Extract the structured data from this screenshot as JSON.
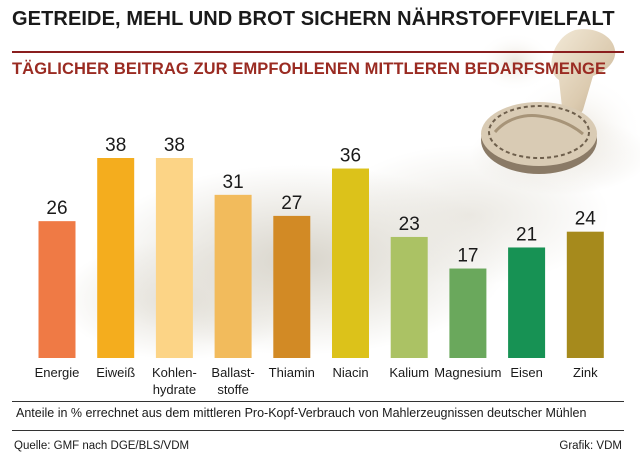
{
  "chart_data": {
    "type": "bar",
    "title": "GETREIDE, MEHL UND BROT SICHERN NÄHRSTOFFVIELFALT",
    "subtitle": "TÄGLICHER BEITRAG ZUR EMPFOHLENEN MITTLEREN BEDARFSMENGE",
    "categories": [
      [
        "Energie"
      ],
      [
        "Eiweiß"
      ],
      [
        "Kohlen-",
        "hydrate"
      ],
      [
        "Ballast-",
        "stoffe"
      ],
      [
        "Thiamin"
      ],
      [
        "Niacin"
      ],
      [
        "Kalium"
      ],
      [
        "Magnesium"
      ],
      [
        "Eisen"
      ],
      [
        "Zink"
      ]
    ],
    "values": [
      26,
      38,
      38,
      31,
      27,
      36,
      23,
      17,
      21,
      24
    ],
    "colors": [
      "#ef7a45",
      "#f4ad1e",
      "#fcd486",
      "#f2bb5c",
      "#d28a25",
      "#dcc21a",
      "#abc264",
      "#6aa85c",
      "#179254",
      "#a68a1c"
    ],
    "ylim": [
      0,
      38
    ],
    "grid": false,
    "legend": "none"
  },
  "footnote": "Anteile in % errechnet aus dem mittleren Pro-Kopf-Verbrauch von Mahlerzeugnissen deutscher Mühlen",
  "source": "Quelle: GMF nach DGE/BLS/VDM",
  "credit": "Grafik: VDM"
}
